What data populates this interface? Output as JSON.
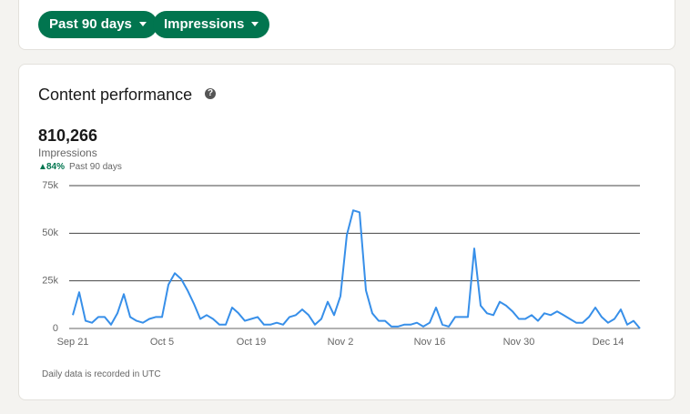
{
  "filters": [
    "Past 90 days",
    "Impressions"
  ],
  "card": {
    "title": "Content performance",
    "total": "810,266",
    "metric": "Impressions",
    "change": "84%",
    "period": "Past 90 days",
    "footnote": "Daily data is recorded in UTC"
  },
  "chart_data": {
    "type": "line",
    "color": "#378fe9",
    "categories": [
      "Sep 21",
      null,
      null,
      null,
      null,
      null,
      null,
      null,
      null,
      null,
      null,
      null,
      null,
      null,
      "Oct 5",
      null,
      null,
      null,
      null,
      null,
      null,
      null,
      null,
      null,
      null,
      null,
      null,
      null,
      "Oct 19",
      null,
      null,
      null,
      null,
      null,
      null,
      null,
      null,
      null,
      null,
      null,
      null,
      null,
      "Nov 2",
      null,
      null,
      null,
      null,
      null,
      null,
      null,
      null,
      null,
      null,
      null,
      null,
      null,
      "Nov 16",
      null,
      null,
      null,
      null,
      null,
      null,
      null,
      null,
      null,
      null,
      null,
      null,
      null,
      "Nov 30",
      null,
      null,
      null,
      null,
      null,
      null,
      null,
      null,
      null,
      null,
      null,
      null,
      null,
      "Dec 14",
      null,
      null,
      null,
      null,
      null
    ],
    "values": [
      7000,
      19000,
      4000,
      3000,
      6000,
      6000,
      2000,
      8000,
      18000,
      6000,
      4000,
      3000,
      5000,
      6000,
      6000,
      23000,
      29000,
      26000,
      20000,
      13000,
      5000,
      7000,
      5000,
      2000,
      2000,
      11000,
      8000,
      4000,
      5000,
      6000,
      2000,
      2000,
      3000,
      2000,
      6000,
      7000,
      10000,
      7000,
      2000,
      5000,
      14000,
      7000,
      17000,
      49000,
      62000,
      61000,
      20000,
      8000,
      4000,
      4000,
      1000,
      1000,
      2000,
      2000,
      3000,
      1000,
      3000,
      11000,
      2000,
      1000,
      6000,
      6000,
      6000,
      42000,
      12000,
      8000,
      7000,
      14000,
      12000,
      9000,
      5000,
      5000,
      7000,
      4000,
      8000,
      7000,
      9000,
      7000,
      5000,
      3000,
      3000,
      6000,
      11000,
      6000,
      3000,
      5000,
      10000,
      2000,
      4000,
      0
    ],
    "ylim": [
      0,
      75000
    ],
    "yticks": [
      0,
      {
        "value": 25000,
        "label": "25k"
      },
      {
        "value": 50000,
        "label": "50k"
      },
      {
        "value": 75000,
        "label": "75k"
      }
    ],
    "grid": true
  }
}
